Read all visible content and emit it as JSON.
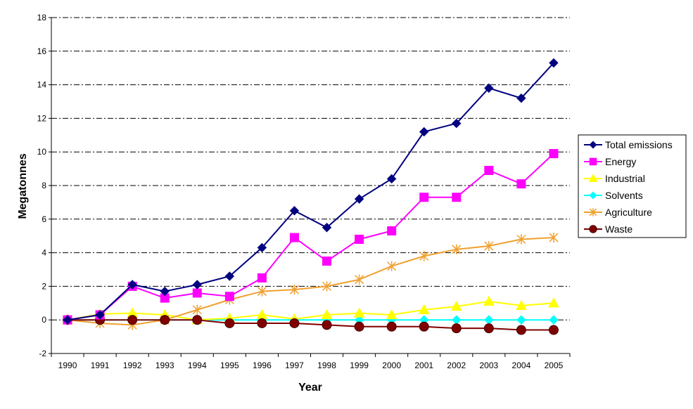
{
  "chart_data": {
    "type": "line",
    "title": "",
    "xlabel": "Year",
    "ylabel": "Megatonnes",
    "ylim": [
      -2,
      18
    ],
    "yticks": [
      "-2",
      "0",
      "2",
      "4",
      "6",
      "8",
      "10",
      "12",
      "14",
      "16",
      "18"
    ],
    "grid": "horizontal dash-dot",
    "legend_position": "right",
    "categories": [
      "1990",
      "1991",
      "1992",
      "1993",
      "1994",
      "1995",
      "1996",
      "1997",
      "1998",
      "1999",
      "2000",
      "2001",
      "2002",
      "2003",
      "2004",
      "2005"
    ],
    "series": [
      {
        "name": "Total emissions",
        "color": "#000080",
        "marker": "diamond",
        "values": [
          0,
          0.3,
          2.1,
          1.7,
          2.1,
          2.6,
          4.3,
          6.5,
          5.5,
          7.2,
          8.4,
          11.2,
          11.7,
          13.8,
          13.2,
          15.3
        ]
      },
      {
        "name": "Energy",
        "color": "#ff00ff",
        "marker": "square",
        "values": [
          0,
          0.3,
          2.0,
          1.3,
          1.6,
          1.4,
          2.5,
          4.9,
          3.5,
          4.8,
          5.3,
          7.3,
          7.3,
          8.9,
          8.1,
          9.9
        ]
      },
      {
        "name": "Industrial",
        "color": "#ffff00",
        "marker": "triangle",
        "values": [
          0,
          0.35,
          0.4,
          0.3,
          0.0,
          0.1,
          0.3,
          0.05,
          0.3,
          0.4,
          0.3,
          0.6,
          0.8,
          1.1,
          0.85,
          1.0
        ]
      },
      {
        "name": "Solvents",
        "color": "#00ffff",
        "marker": "diamond",
        "values": [
          0,
          0,
          0,
          0,
          0,
          0,
          0,
          0,
          0,
          0,
          0,
          0,
          0,
          0,
          0,
          0
        ]
      },
      {
        "name": "Agriculture",
        "color": "#f0a030",
        "marker": "star",
        "values": [
          0,
          -0.2,
          -0.3,
          0.0,
          0.6,
          1.2,
          1.7,
          1.8,
          2.0,
          2.4,
          3.2,
          3.8,
          4.2,
          4.4,
          4.8,
          4.9
        ]
      },
      {
        "name": "Waste",
        "color": "#800000",
        "marker": "circle",
        "values": [
          0,
          0,
          0,
          0,
          0,
          -0.2,
          -0.2,
          -0.2,
          -0.3,
          -0.4,
          -0.4,
          -0.4,
          -0.5,
          -0.5,
          -0.6,
          -0.6
        ]
      }
    ]
  }
}
